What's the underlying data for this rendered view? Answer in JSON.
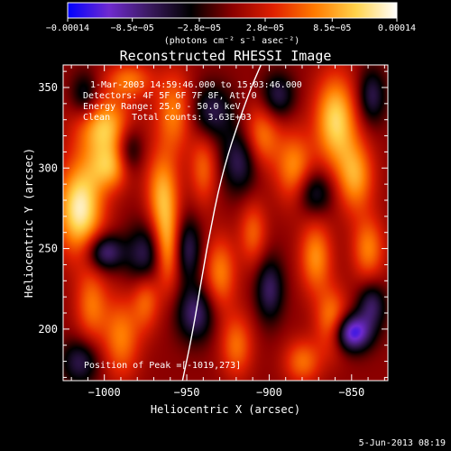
{
  "chart_data": {
    "type": "heatmap",
    "title": "Reconstructed RHESSI Image",
    "xlabel": "Heliocentric X (arcsec)",
    "ylabel": "Heliocentric Y (arcsec)",
    "xlim": [
      -1025,
      -828
    ],
    "ylim": [
      168,
      364
    ],
    "x_ticks": [
      -1000,
      -950,
      -900,
      -850
    ],
    "x_tick_labels": [
      "−1000",
      "−950",
      "−900",
      "−850"
    ],
    "y_ticks": [
      200,
      250,
      300,
      350
    ],
    "y_tick_labels": [
      "200",
      "250",
      "300",
      "350"
    ],
    "colorbar": {
      "range": [
        -0.00014,
        0.00014
      ],
      "ticks": [
        -0.00014,
        -8.5e-05,
        -2.8e-05,
        2.8e-05,
        8.5e-05,
        0.00014
      ],
      "tick_labels": [
        "−0.00014",
        "−8.5e−05",
        "−2.8e−05",
        "2.8e−05",
        "8.5e−05",
        "0.00014"
      ],
      "unit_label": "(photons cm⁻² s⁻¹ asec⁻²)",
      "colormap": [
        "#0000ff",
        "#6f2ad0",
        "#3a1a5e",
        "#000000",
        "#8b0000",
        "#e02000",
        "#ff7a00",
        "#ffd24a",
        "#ffffff"
      ]
    },
    "info_lines": [
      "1-Mar-2003 14:59:46.000 to 15:03:46.000",
      "Detectors: 4F 5F 6F 7F 8F, Att 0",
      "Energy Range: 25.0 - 50.0 keV",
      "Clean    Total counts: 3.63E+03"
    ],
    "peak": {
      "label": "Position of Peak =",
      "value": "[-1019,273]",
      "x": -1019,
      "y": 273
    },
    "limb_curve": {
      "points": [
        [
          -953,
          166
        ],
        [
          -946,
          200
        ],
        [
          -938,
          250
        ],
        [
          -928,
          300
        ],
        [
          -913,
          345
        ],
        [
          -905,
          364
        ]
      ]
    },
    "blobs": [
      {
        "x": -1015,
        "y": 275,
        "sx": 10,
        "sy": 20,
        "v": 1.0
      },
      {
        "x": -1000,
        "y": 325,
        "sx": 12,
        "sy": 14,
        "v": 0.8
      },
      {
        "x": -995,
        "y": 300,
        "sx": 10,
        "sy": 10,
        "v": 0.6
      },
      {
        "x": -985,
        "y": 355,
        "sx": 10,
        "sy": 8,
        "v": 0.5
      },
      {
        "x": -958,
        "y": 335,
        "sx": 8,
        "sy": 18,
        "v": 0.55
      },
      {
        "x": -965,
        "y": 285,
        "sx": 7,
        "sy": 18,
        "v": 0.65
      },
      {
        "x": -962,
        "y": 250,
        "sx": 6,
        "sy": 18,
        "v": 0.7
      },
      {
        "x": -975,
        "y": 220,
        "sx": 6,
        "sy": 14,
        "v": 0.5
      },
      {
        "x": -990,
        "y": 195,
        "sx": 8,
        "sy": 18,
        "v": 0.55
      },
      {
        "x": -1008,
        "y": 215,
        "sx": 7,
        "sy": 16,
        "v": 0.5
      },
      {
        "x": -940,
        "y": 300,
        "sx": 6,
        "sy": 16,
        "v": 0.45
      },
      {
        "x": -930,
        "y": 235,
        "sx": 7,
        "sy": 16,
        "v": 0.55
      },
      {
        "x": -920,
        "y": 190,
        "sx": 7,
        "sy": 14,
        "v": 0.5
      },
      {
        "x": -910,
        "y": 260,
        "sx": 6,
        "sy": 14,
        "v": 0.45
      },
      {
        "x": -905,
        "y": 320,
        "sx": 8,
        "sy": 14,
        "v": 0.55
      },
      {
        "x": -885,
        "y": 300,
        "sx": 8,
        "sy": 16,
        "v": 0.6
      },
      {
        "x": -872,
        "y": 245,
        "sx": 7,
        "sy": 16,
        "v": 0.6
      },
      {
        "x": -860,
        "y": 330,
        "sx": 9,
        "sy": 20,
        "v": 0.85
      },
      {
        "x": -848,
        "y": 295,
        "sx": 8,
        "sy": 16,
        "v": 0.65
      },
      {
        "x": -840,
        "y": 250,
        "sx": 7,
        "sy": 14,
        "v": 0.55
      },
      {
        "x": -862,
        "y": 205,
        "sx": 7,
        "sy": 14,
        "v": 0.6
      },
      {
        "x": -880,
        "y": 180,
        "sx": 8,
        "sy": 10,
        "v": 0.5
      },
      {
        "x": -1000,
        "y": 248,
        "sx": 8,
        "sy": 8,
        "v": -0.7
      },
      {
        "x": -975,
        "y": 245,
        "sx": 8,
        "sy": 14,
        "v": -0.6
      },
      {
        "x": -985,
        "y": 310,
        "sx": 6,
        "sy": 12,
        "v": -0.55
      },
      {
        "x": -950,
        "y": 250,
        "sx": 6,
        "sy": 14,
        "v": -0.55
      },
      {
        "x": -945,
        "y": 210,
        "sx": 8,
        "sy": 12,
        "v": -0.6
      },
      {
        "x": -935,
        "y": 335,
        "sx": 9,
        "sy": 12,
        "v": -0.5
      },
      {
        "x": -918,
        "y": 305,
        "sx": 8,
        "sy": 14,
        "v": -0.55
      },
      {
        "x": -900,
        "y": 225,
        "sx": 6,
        "sy": 14,
        "v": -0.55
      },
      {
        "x": -895,
        "y": 345,
        "sx": 7,
        "sy": 10,
        "v": -0.5
      },
      {
        "x": -873,
        "y": 285,
        "sx": 8,
        "sy": 10,
        "v": -0.5
      },
      {
        "x": -850,
        "y": 198,
        "sx": 8,
        "sy": 8,
        "v": -1.0
      },
      {
        "x": -838,
        "y": 215,
        "sx": 6,
        "sy": 10,
        "v": -0.55
      },
      {
        "x": -1015,
        "y": 180,
        "sx": 8,
        "sy": 10,
        "v": -0.5
      },
      {
        "x": -1012,
        "y": 345,
        "sx": 6,
        "sy": 10,
        "v": -0.45
      },
      {
        "x": -838,
        "y": 345,
        "sx": 6,
        "sy": 12,
        "v": -0.5
      }
    ]
  },
  "footer": {
    "date_stamp": "5-Jun-2013 08:19"
  }
}
